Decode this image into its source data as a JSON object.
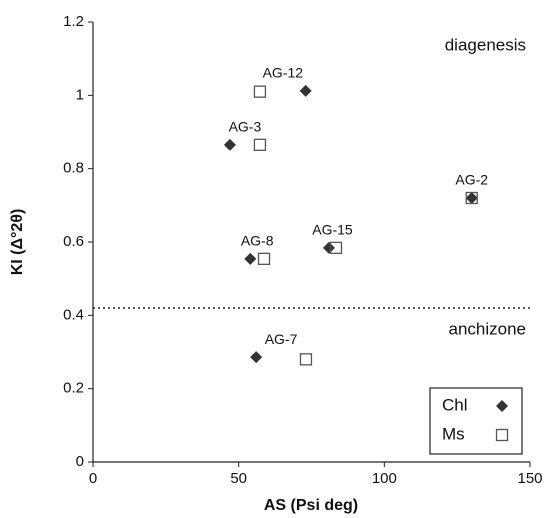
{
  "chart_data": {
    "type": "scatter",
    "x_label": "AS (Psi deg)",
    "y_label": "KI (Δ°2θ)",
    "xlim": [
      0,
      150
    ],
    "xticks": [
      0,
      50,
      100,
      150
    ],
    "ylim": [
      0,
      1.2
    ],
    "yticks": [
      0,
      0.2,
      0.4,
      0.6,
      0.8,
      1,
      1.2
    ],
    "grid": false,
    "legend": "lower right",
    "point_labels": [
      "AG-12",
      "AG-3",
      "AG-2",
      "AG-8",
      "AG-15",
      "AG-7"
    ],
    "series": [
      {
        "name": "Chl",
        "color": "#333333",
        "marker": "diamond",
        "x": [
          73,
          47,
          130,
          54,
          81,
          56
        ],
        "values": [
          1.012,
          0.865,
          0.72,
          0.554,
          0.584,
          0.286
        ]
      },
      {
        "name": "Ms",
        "color": "#555555",
        "marker": "square",
        "x": [
          57.3,
          57.3,
          130,
          58.7,
          83.4,
          73.1
        ],
        "values": [
          1.01,
          0.865,
          0.72,
          0.554,
          0.584,
          0.28
        ]
      }
    ],
    "threshold": 0.42,
    "region_labels": {
      "above": "diagenesis",
      "below": "anchizone"
    }
  }
}
